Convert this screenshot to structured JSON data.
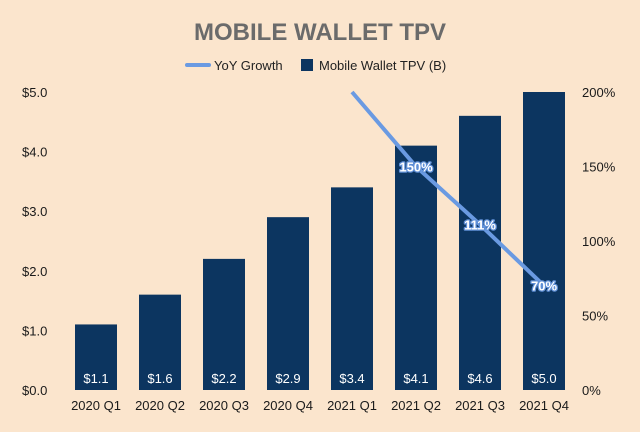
{
  "chart_data": {
    "type": "bar",
    "title": "MOBILE WALLET TPV",
    "categories": [
      "2020 Q1",
      "2020 Q2",
      "2020 Q3",
      "2020 Q4",
      "2021 Q1",
      "2021 Q2",
      "2021 Q3",
      "2021 Q4"
    ],
    "series": [
      {
        "name": "Mobile Wallet TPV (B)",
        "type": "bar",
        "axis": "left",
        "values": [
          1.1,
          1.6,
          2.2,
          2.9,
          3.4,
          4.1,
          4.6,
          5.0
        ],
        "labels": [
          "$1.1",
          "$1.6",
          "$2.2",
          "$2.9",
          "$3.4",
          "$4.1",
          "$4.6",
          "$5.0"
        ]
      },
      {
        "name": "YoY Growth",
        "type": "line",
        "axis": "right",
        "values": [
          null,
          null,
          null,
          null,
          200,
          150,
          111,
          70
        ],
        "labels": [
          "",
          "",
          "",
          "",
          "",
          "150%",
          "111%",
          "70%"
        ]
      }
    ],
    "y_left": {
      "range": [
        0,
        5
      ],
      "ticks": [
        "$0.0",
        "$1.0",
        "$2.0",
        "$3.0",
        "$4.0",
        "$5.0"
      ]
    },
    "y_right": {
      "range": [
        0,
        200
      ],
      "ticks": [
        "0%",
        "50%",
        "100%",
        "150%",
        "200%"
      ]
    },
    "grid": false,
    "legend": "top-center",
    "legend_order": [
      "YoY Growth",
      "Mobile Wallet TPV (B)"
    ]
  },
  "colors": {
    "bar": "#0c3560",
    "line": "#6a9ae2",
    "background": "#fbe5cd",
    "title": "#6b6b6b"
  }
}
